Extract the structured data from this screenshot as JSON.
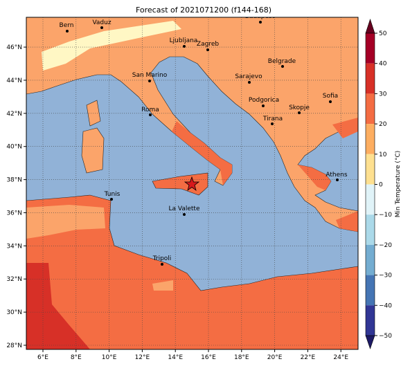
{
  "header": {
    "title": "Forecast of 2021071200 (f144-168)"
  },
  "map": {
    "lon_ticks": [
      {
        "value": 6,
        "label": "6°E"
      },
      {
        "value": 8,
        "label": "8°E"
      },
      {
        "value": 10,
        "label": "10°E"
      },
      {
        "value": 12,
        "label": "12°E"
      },
      {
        "value": 14,
        "label": "14°E"
      },
      {
        "value": 16,
        "label": "16°E"
      },
      {
        "value": 18,
        "label": "18°E"
      },
      {
        "value": 20,
        "label": "20°E"
      },
      {
        "value": 22,
        "label": "22°E"
      },
      {
        "value": 24,
        "label": "24°E"
      }
    ],
    "lat_ticks": [
      {
        "value": 28,
        "label": "28°N"
      },
      {
        "value": 30,
        "label": "30°N"
      },
      {
        "value": 32,
        "label": "32°N"
      },
      {
        "value": 34,
        "label": "34°N"
      },
      {
        "value": 36,
        "label": "36°N"
      },
      {
        "value": 38,
        "label": "38°N"
      },
      {
        "value": 40,
        "label": "40°N"
      },
      {
        "value": 42,
        "label": "42°N"
      },
      {
        "value": 44,
        "label": "44°N"
      },
      {
        "value": 46,
        "label": "46°N"
      }
    ],
    "cities": [
      "Bern",
      "Vaduz",
      "Budapest",
      "Ljubljana",
      "Zagreb",
      "Belgrade",
      "San Marino",
      "Sarajevo",
      "Sofia",
      "Podgorica",
      "Skopje",
      "Roma",
      "Tirana",
      "Athens",
      "Tunis",
      "La Valette",
      "Tripoli"
    ]
  },
  "colorbar": {
    "label": "Min Temperature (°C)",
    "ticks": [
      {
        "value": 50,
        "label": "50"
      },
      {
        "value": 40,
        "label": "40"
      },
      {
        "value": 30,
        "label": "30"
      },
      {
        "value": 20,
        "label": "20"
      },
      {
        "value": 10,
        "label": "10"
      },
      {
        "value": 0,
        "label": "0"
      },
      {
        "value": -10,
        "label": "−10"
      },
      {
        "value": -20,
        "label": "−20"
      },
      {
        "value": -30,
        "label": "−30"
      },
      {
        "value": -40,
        "label": "−40"
      },
      {
        "value": -50,
        "label": "−50"
      }
    ]
  }
}
